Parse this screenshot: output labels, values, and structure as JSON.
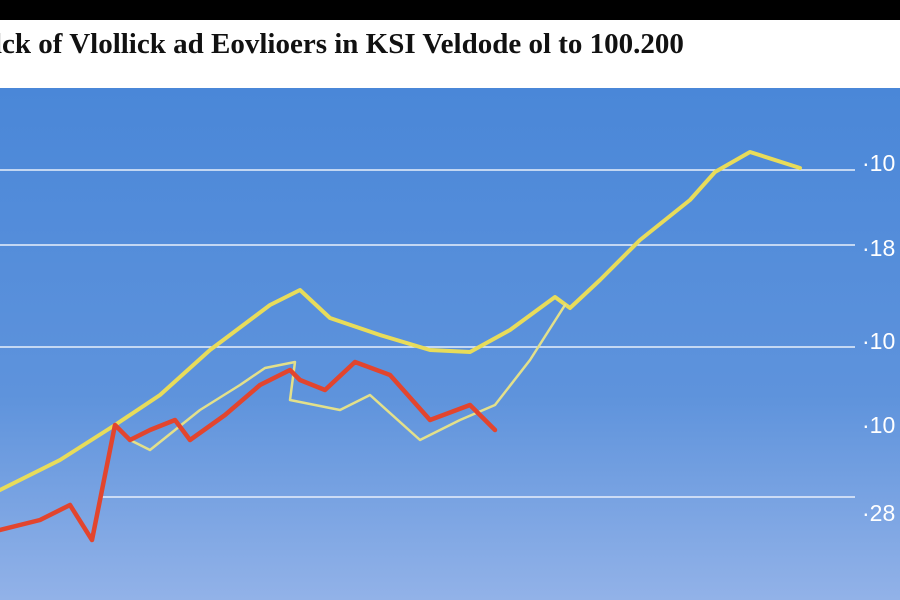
{
  "title": "lck of Vlollick ad Eovlioers in KSI Veldode ol to 100.200",
  "axis_labels": [
    "·10",
    "·18",
    "·10",
    "·10",
    "·28"
  ]
}
